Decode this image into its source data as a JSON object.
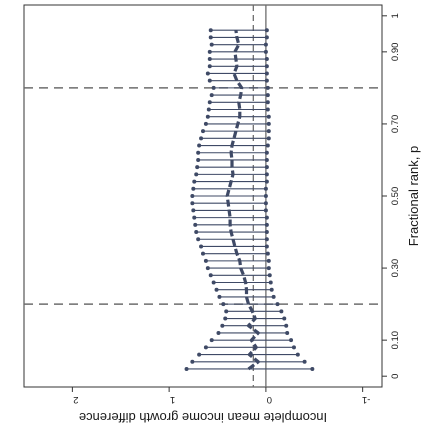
{
  "chart_data": {
    "type": "line",
    "orientation": "rotated-90-clockwise",
    "xlabel": "Fractional rank, p",
    "ylabel": "Incomplete mean income growth difference",
    "xlim": [
      -0.03,
      1.03
    ],
    "ylim": [
      -1.2,
      2.5
    ],
    "x_ticks": [
      0,
      0.1,
      0.3,
      0.5,
      0.7,
      0.9,
      1
    ],
    "x_tick_labels": [
      "0",
      "0.10",
      "0.30",
      "0.50",
      "0.70",
      "0.90",
      "1"
    ],
    "y_ticks": [
      2,
      1,
      0,
      -1
    ],
    "y_tick_labels": [
      "2",
      "1",
      "0",
      "-1"
    ],
    "reference_lines": {
      "solid_x": 0,
      "dashed_y": 0.13,
      "dashed_p": [
        0.2,
        0.8
      ]
    },
    "grid": false,
    "legend": "none",
    "colors": {
      "series": "#3f4a66",
      "reference": "#6d6d6d",
      "frame": "#333333"
    },
    "series": [
      {
        "p": [
          0.02,
          0.04,
          0.06,
          0.08,
          0.1,
          0.12,
          0.14,
          0.16,
          0.18,
          0.2,
          0.22,
          0.24,
          0.26,
          0.28,
          0.3,
          0.32,
          0.34,
          0.36,
          0.38,
          0.4,
          0.42,
          0.44,
          0.46,
          0.48,
          0.5,
          0.52,
          0.54,
          0.56,
          0.58,
          0.6,
          0.62,
          0.64,
          0.66,
          0.68,
          0.7,
          0.72,
          0.74,
          0.76,
          0.78,
          0.8,
          0.82,
          0.84,
          0.86,
          0.88,
          0.9,
          0.92,
          0.94,
          0.96
        ],
        "estimate": [
          0.18,
          0.08,
          0.17,
          0.1,
          0.15,
          0.08,
          0.18,
          0.11,
          0.14,
          0.18,
          0.2,
          0.2,
          0.21,
          0.23,
          0.26,
          0.27,
          0.3,
          0.32,
          0.34,
          0.36,
          0.37,
          0.37,
          0.38,
          0.39,
          0.4,
          0.38,
          0.36,
          0.34,
          0.35,
          0.35,
          0.36,
          0.35,
          0.33,
          0.31,
          0.29,
          0.27,
          0.27,
          0.28,
          0.26,
          0.25,
          0.3,
          0.33,
          0.3,
          0.31,
          0.32,
          0.28,
          0.3,
          0.31
        ],
        "lower": [
          -0.48,
          -0.4,
          -0.33,
          -0.29,
          -0.26,
          -0.22,
          -0.21,
          -0.19,
          -0.16,
          -0.12,
          -0.08,
          -0.06,
          -0.05,
          -0.04,
          -0.03,
          -0.03,
          -0.02,
          -0.01,
          -0.01,
          -0.01,
          -0.01,
          -0.01,
          0.0,
          0.0,
          0.0,
          0.0,
          -0.01,
          -0.01,
          -0.01,
          -0.01,
          -0.01,
          -0.02,
          -0.03,
          -0.03,
          -0.03,
          -0.03,
          -0.02,
          -0.02,
          -0.02,
          -0.02,
          -0.01,
          -0.01,
          -0.01,
          -0.01,
          0.0,
          0.0,
          -0.01,
          -0.01
        ],
        "upper": [
          0.82,
          0.76,
          0.69,
          0.62,
          0.56,
          0.49,
          0.45,
          0.42,
          0.41,
          0.44,
          0.48,
          0.51,
          0.54,
          0.57,
          0.6,
          0.62,
          0.65,
          0.67,
          0.7,
          0.72,
          0.73,
          0.74,
          0.75,
          0.76,
          0.76,
          0.75,
          0.74,
          0.72,
          0.71,
          0.7,
          0.7,
          0.69,
          0.67,
          0.65,
          0.62,
          0.6,
          0.59,
          0.58,
          0.56,
          0.54,
          0.58,
          0.6,
          0.58,
          0.58,
          0.58,
          0.56,
          0.57,
          0.57
        ]
      }
    ]
  }
}
